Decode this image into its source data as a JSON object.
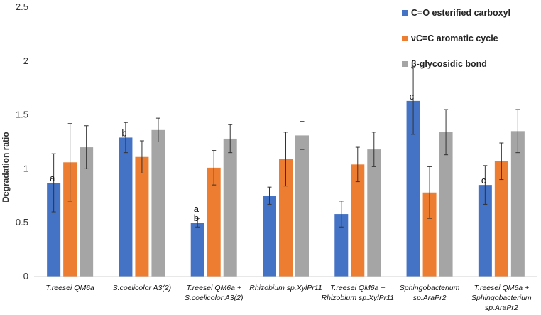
{
  "chart_data": {
    "type": "bar",
    "title": "",
    "xlabel": "",
    "ylabel": "Degradation ratio",
    "ylim": [
      0,
      2.5
    ],
    "yticks": [
      "0",
      "0.5",
      "1",
      "1.5",
      "2",
      "2.5"
    ],
    "ytick_values": [
      0,
      0.5,
      1,
      1.5,
      2,
      2.5
    ],
    "grid": false,
    "legend_position": "top-right",
    "categories": [
      [
        "T.reesei QM6a"
      ],
      [
        "S.coelicolor A3(2)"
      ],
      [
        "T.reesei QM6a +",
        "S.coelicolor A3(2)"
      ],
      [
        "Rhizobium sp.XylPr11"
      ],
      [
        "T.reesei QM6a +",
        "Rhizobium sp.XylPr11"
      ],
      [
        "Sphingobacterium",
        "sp.AraPr2"
      ],
      [
        "T.reesei QM6a +",
        "Sphingobacterium",
        "sp.AraPr2"
      ]
    ],
    "series": [
      {
        "name": "C=O  esterified carboxyl",
        "color": "#4472C4",
        "values": [
          0.87,
          1.29,
          0.5,
          0.75,
          0.58,
          1.63,
          0.85
        ],
        "errors": [
          0.27,
          0.14,
          0.04,
          0.08,
          0.12,
          0.31,
          0.18
        ],
        "annotations": [
          [
            "a"
          ],
          [
            "b"
          ],
          [
            "a",
            "b"
          ],
          [],
          [],
          [
            "c"
          ],
          [
            "c"
          ]
        ]
      },
      {
        "name": "νC=C aromatic cycle",
        "color": "#ED7D31",
        "values": [
          1.06,
          1.11,
          1.01,
          1.09,
          1.04,
          0.78,
          1.07
        ],
        "errors": [
          0.36,
          0.15,
          0.16,
          0.25,
          0.16,
          0.24,
          0.17
        ],
        "annotations": [
          [],
          [],
          [],
          [],
          [],
          [],
          []
        ]
      },
      {
        "name": "β-glycosidic bond",
        "color": "#A5A5A5",
        "values": [
          1.2,
          1.36,
          1.28,
          1.31,
          1.18,
          1.34,
          1.35
        ],
        "errors": [
          0.2,
          0.11,
          0.13,
          0.13,
          0.16,
          0.21,
          0.2
        ],
        "annotations": [
          [],
          [],
          [],
          [],
          [],
          [],
          []
        ]
      }
    ]
  }
}
